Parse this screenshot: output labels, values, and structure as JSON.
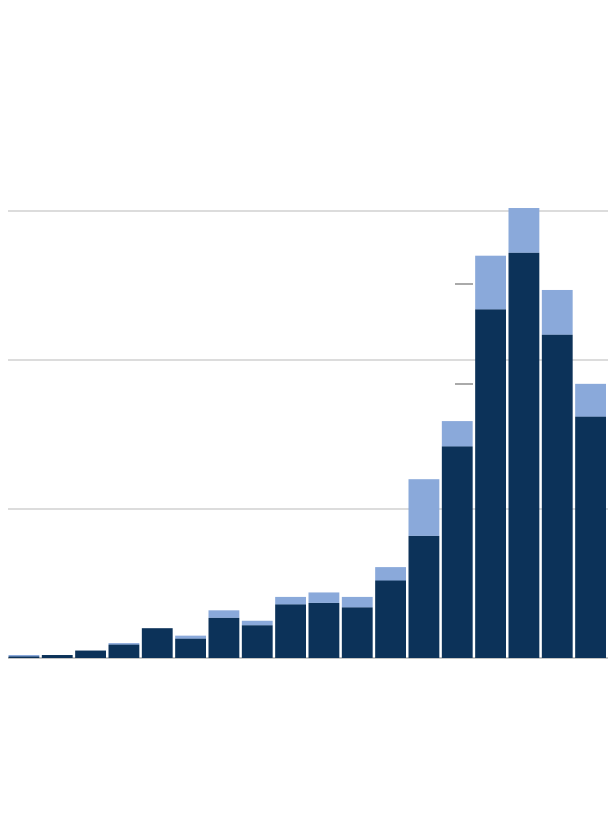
{
  "chart_data": {
    "type": "bar",
    "stacked": true,
    "categories": [
      null,
      null,
      null,
      null,
      null,
      null,
      null,
      null,
      null,
      null,
      null,
      null,
      null,
      null,
      null,
      null,
      null,
      null
    ],
    "series": [
      {
        "color": "#0c3259",
        "values": [
          0.01,
          0.02,
          0.05,
          0.09,
          0.2,
          0.13,
          0.27,
          0.22,
          0.36,
          0.37,
          0.34,
          0.52,
          0.82,
          1.42,
          2.34,
          2.72,
          2.17,
          1.62
        ]
      },
      {
        "color": "#8aa9da",
        "values": [
          0.01,
          0,
          0,
          0.01,
          0,
          0.02,
          0.05,
          0.03,
          0.05,
          0.07,
          0.07,
          0.09,
          0.38,
          0.17,
          0.36,
          0.3,
          0.3,
          0.22
        ]
      }
    ],
    "ylim": [
      0,
      3
    ],
    "yticks": [
      0,
      1,
      2,
      3
    ],
    "grid": true,
    "grid_color": "#b8b8b8",
    "axis_color": "#888888"
  }
}
